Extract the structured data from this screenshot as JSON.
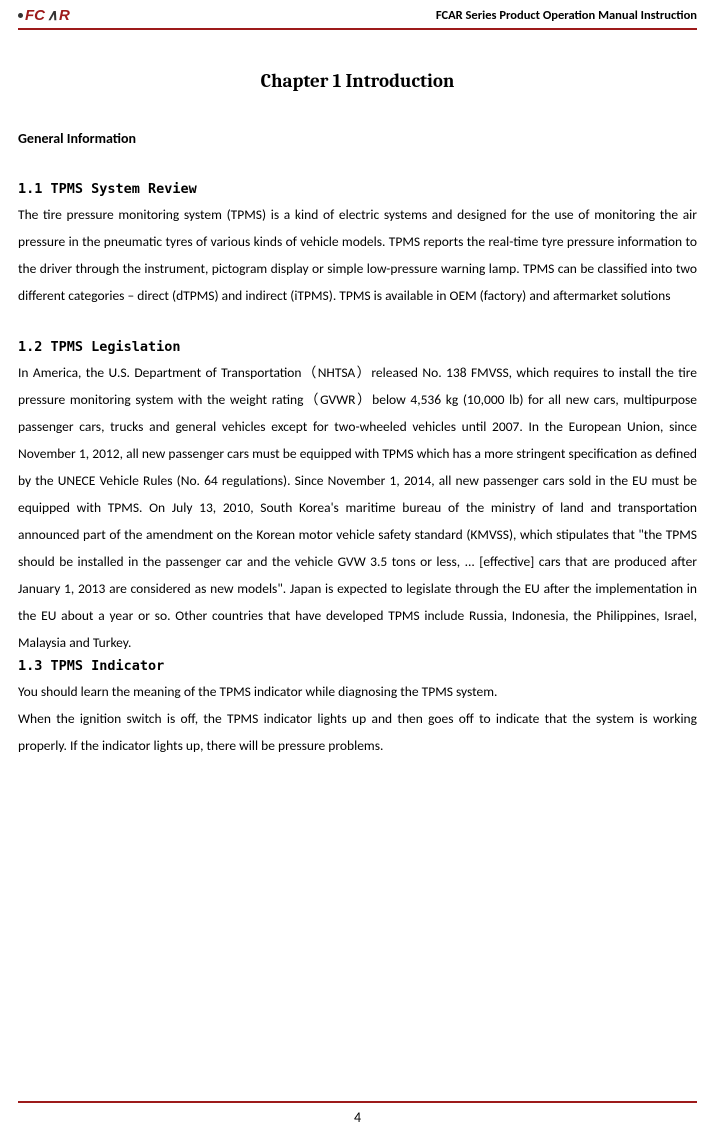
{
  "header": {
    "title": "FCAR Series Product  Operation Manual Instruction",
    "rule_color": "#9d1a1a",
    "logo_text": "FCAR",
    "logo_color_main": "#9d1a1a",
    "logo_color_accent": "#333333"
  },
  "chapter": {
    "title": "Chapter 1 Introduction"
  },
  "sections": {
    "general_info": "General Information",
    "s1_1": {
      "heading": "1.1  TPMS System Review",
      "body": "The tire pressure monitoring system (TPMS) is a kind of electric systems and designed for the use of monitoring the air pressure in the pneumatic tyres of various kinds of vehicle models. TPMS reports the real-time tyre pressure information to the driver through the instrument, pictogram display or simple low-pressure warning lamp. TPMS can be classified into two different categories – direct (dTPMS) and indirect (iTPMS). TPMS is available in OEM (factory) and aftermarket solutions"
    },
    "s1_2": {
      "heading": "1.2  TPMS Legislation",
      "body": "In America, the U.S. Department of Transportation（NHTSA）released No. 138 FMVSS, which requires to install the tire pressure monitoring system with the weight rating（GVWR）below 4,536 kg (10,000 lb) for all new cars, multipurpose passenger cars, trucks and general vehicles except for two-wheeled vehicles until 2007. In the European Union, since November 1, 2012, all new passenger cars must be equipped with TPMS which has a more stringent specification as defined by the UNECE Vehicle Rules (No. 64 regulations). Since November 1, 2014, all new passenger cars sold in the EU must be equipped with TPMS. On July 13, 2010, South Korea's maritime bureau of the ministry of land and transportation announced part of the amendment on the Korean motor vehicle safety standard (KMVSS), which stipulates that \"the TPMS should be installed in the passenger car and the vehicle GVW 3.5 tons or less, ... [effective] cars that are produced after January 1, 2013 are considered as new models\". Japan is expected to legislate through the EU after the implementation in the EU about a year or so. Other countries that have developed TPMS include Russia, Indonesia, the Philippines, Israel, Malaysia and Turkey."
    },
    "s1_3": {
      "heading": "1.3  TPMS Indicator",
      "body1": "You should learn the meaning of the TPMS indicator while diagnosing the TPMS system.",
      "body2": "When the ignition switch is off, the TPMS indicator lights up and then goes off to indicate that the system is working properly. If the indicator lights up, there will be pressure problems."
    }
  },
  "footer": {
    "page": "4",
    "rule_color": "#9d1a1a"
  }
}
